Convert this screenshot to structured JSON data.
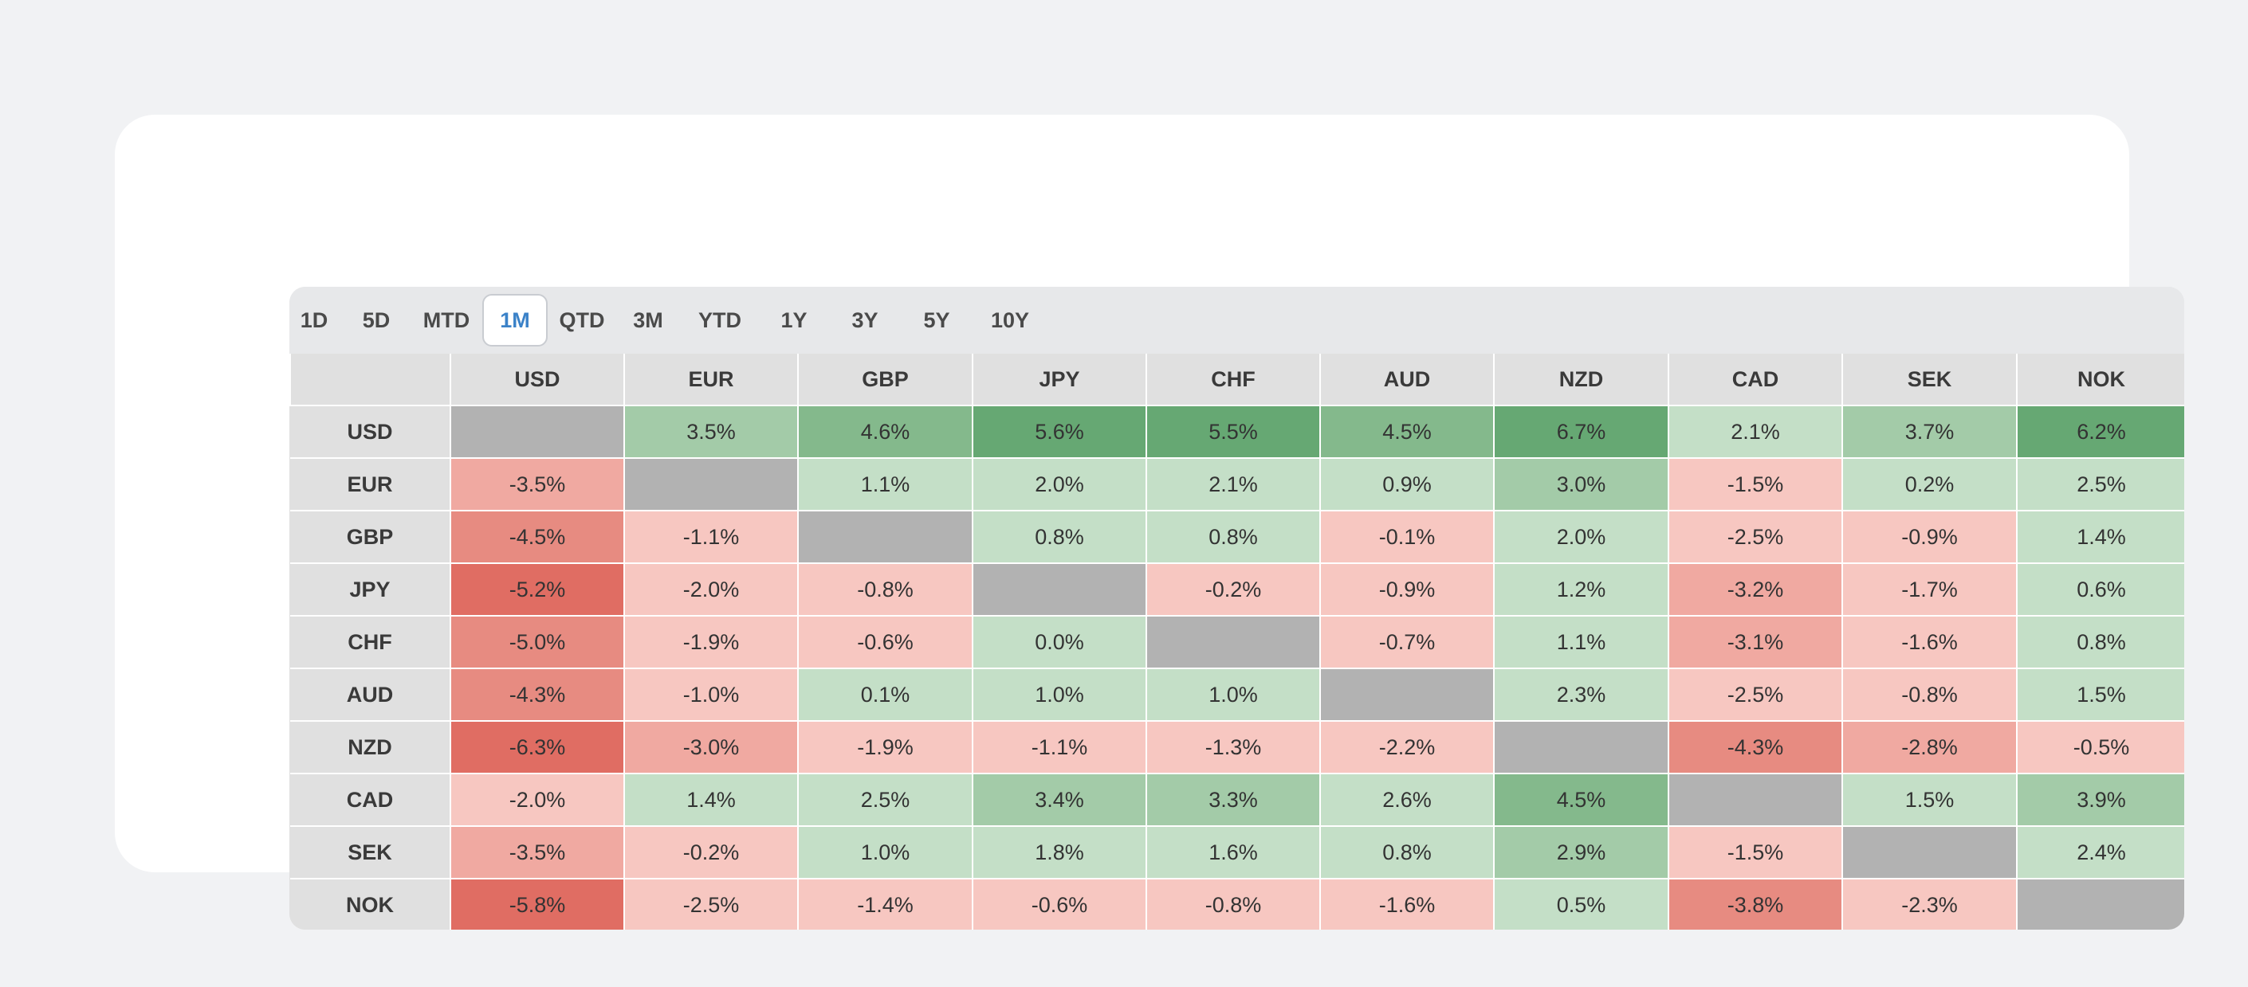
{
  "timeframe_tabs": [
    {
      "label": "1D",
      "active": false
    },
    {
      "label": "5D",
      "active": false
    },
    {
      "label": "MTD",
      "active": false
    },
    {
      "label": "1M",
      "active": true
    },
    {
      "label": "QTD",
      "active": false
    },
    {
      "label": "3M",
      "active": false
    },
    {
      "label": "YTD",
      "active": false
    },
    {
      "label": "1Y",
      "active": false
    },
    {
      "label": "3Y",
      "active": false
    },
    {
      "label": "5Y",
      "active": false
    },
    {
      "label": "10Y",
      "active": false
    }
  ],
  "colors": {
    "diagonal": "#b2b2b2",
    "green_1": "#c4dfc7",
    "green_2": "#a3cba8",
    "green_3": "#84b98c",
    "green_4": "#66a873",
    "red_1": "#f7c7c1",
    "red_2": "#f0a9a1",
    "red_3": "#e78b81",
    "red_4": "#e06d63",
    "active_tab_text": "#3b82c8"
  },
  "matrix": {
    "column_headers": [
      "USD",
      "EUR",
      "GBP",
      "JPY",
      "CHF",
      "AUD",
      "NZD",
      "CAD",
      "SEK",
      "NOK"
    ],
    "rows": [
      {
        "label": "USD",
        "values": [
          null,
          "3.5%",
          "4.6%",
          "5.6%",
          "5.5%",
          "4.5%",
          "6.7%",
          "2.1%",
          "3.7%",
          "6.2%"
        ]
      },
      {
        "label": "EUR",
        "values": [
          "-3.5%",
          null,
          "1.1%",
          "2.0%",
          "2.1%",
          "0.9%",
          "3.0%",
          "-1.5%",
          "0.2%",
          "2.5%"
        ]
      },
      {
        "label": "GBP",
        "values": [
          "-4.5%",
          "-1.1%",
          null,
          "0.8%",
          "0.8%",
          "-0.1%",
          "2.0%",
          "-2.5%",
          "-0.9%",
          "1.4%"
        ]
      },
      {
        "label": "JPY",
        "values": [
          "-5.2%",
          "-2.0%",
          "-0.8%",
          null,
          "-0.2%",
          "-0.9%",
          "1.2%",
          "-3.2%",
          "-1.7%",
          "0.6%"
        ]
      },
      {
        "label": "CHF",
        "values": [
          "-5.0%",
          "-1.9%",
          "-0.6%",
          "0.0%",
          null,
          "-0.7%",
          "1.1%",
          "-3.1%",
          "-1.6%",
          "0.8%"
        ]
      },
      {
        "label": "AUD",
        "values": [
          "-4.3%",
          "-1.0%",
          "0.1%",
          "1.0%",
          "1.0%",
          null,
          "2.3%",
          "-2.5%",
          "-0.8%",
          "1.5%"
        ]
      },
      {
        "label": "NZD",
        "values": [
          "-6.3%",
          "-3.0%",
          "-1.9%",
          "-1.1%",
          "-1.3%",
          "-2.2%",
          null,
          "-4.3%",
          "-2.8%",
          "-0.5%"
        ]
      },
      {
        "label": "CAD",
        "values": [
          "-2.0%",
          "1.4%",
          "2.5%",
          "3.4%",
          "3.3%",
          "2.6%",
          "4.5%",
          null,
          "1.5%",
          "3.9%"
        ]
      },
      {
        "label": "SEK",
        "values": [
          "-3.5%",
          "-0.2%",
          "1.0%",
          "1.8%",
          "1.6%",
          "0.8%",
          "2.9%",
          "-1.5%",
          null,
          "2.4%"
        ]
      },
      {
        "label": "NOK",
        "values": [
          "-5.8%",
          "-2.5%",
          "-1.4%",
          "-0.6%",
          "-0.8%",
          "-1.6%",
          "0.5%",
          "-3.8%",
          "-2.3%",
          null
        ]
      }
    ]
  }
}
